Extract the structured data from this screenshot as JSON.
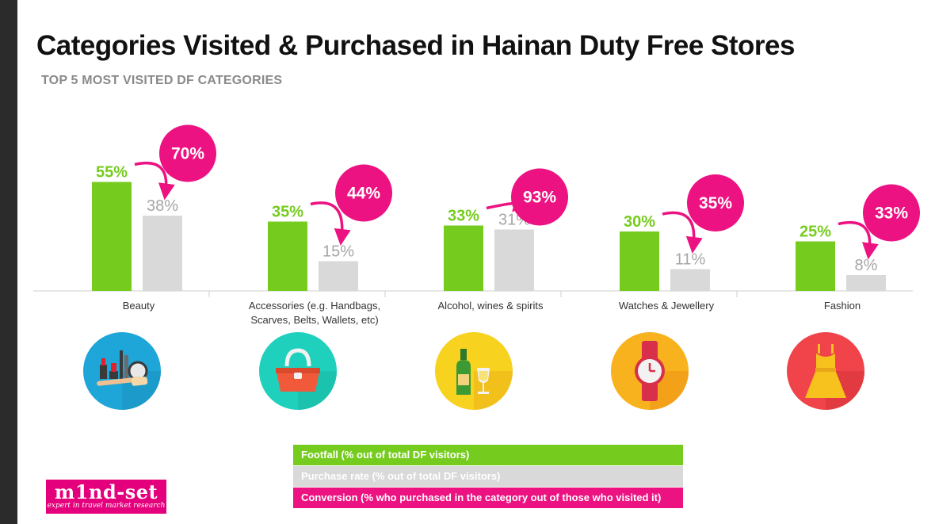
{
  "title": "Categories Visited & Purchased in Hainan Duty Free Stores",
  "subtitle": "TOP 5 MOST VISITED DF CATEGORIES",
  "colors": {
    "footfall": "#76cc1e",
    "purchase": "#d9d9d9",
    "conversion": "#ec1281",
    "purchase_label": "#a6a6a6"
  },
  "chart_data": {
    "type": "bar",
    "title": "Categories Visited & Purchased in Hainan Duty Free Stores",
    "subtitle": "TOP 5 MOST VISITED DF CATEGORIES",
    "categories": [
      "Beauty",
      "Accessories (e.g. Handbags, Scarves, Belts, Wallets, etc)",
      "Alcohol, wines & spirits",
      "Watches & Jewellery",
      "Fashion"
    ],
    "series": [
      {
        "name": "Footfall (% out of total DF visitors)",
        "values": [
          55,
          35,
          33,
          30,
          25
        ],
        "labels": [
          "55%",
          "35%",
          "33%",
          "30%",
          "25%"
        ]
      },
      {
        "name": "Purchase rate (% out of total DF visitors)",
        "values": [
          38,
          15,
          31,
          11,
          8
        ],
        "labels": [
          "38%",
          "15%",
          "31%",
          "11%",
          "8%"
        ]
      }
    ],
    "conversion": {
      "name": "Conversion (% who purchased in the category out of those who visited it)",
      "values": [
        70,
        44,
        93,
        35,
        33
      ],
      "labels": [
        "70%",
        "44%",
        "93%",
        "35%",
        "33%"
      ]
    },
    "unit": "%",
    "ylim": [
      0,
      100
    ],
    "grid": false,
    "legend_position": "bottom-center"
  },
  "icons": [
    "makeup-icon",
    "handbag-icon",
    "champagne-icon",
    "watch-icon",
    "dress-icon"
  ],
  "legend": [
    {
      "label": "Footfall (% out of total DF visitors)",
      "key": "footfall"
    },
    {
      "label": "Purchase rate (% out of total DF visitors)",
      "key": "purchase"
    },
    {
      "label": "Conversion (% who purchased in the category out of those who visited it)",
      "key": "conversion"
    }
  ],
  "logo": {
    "name": "m1nd-set",
    "tagline": "expert in travel market research"
  }
}
